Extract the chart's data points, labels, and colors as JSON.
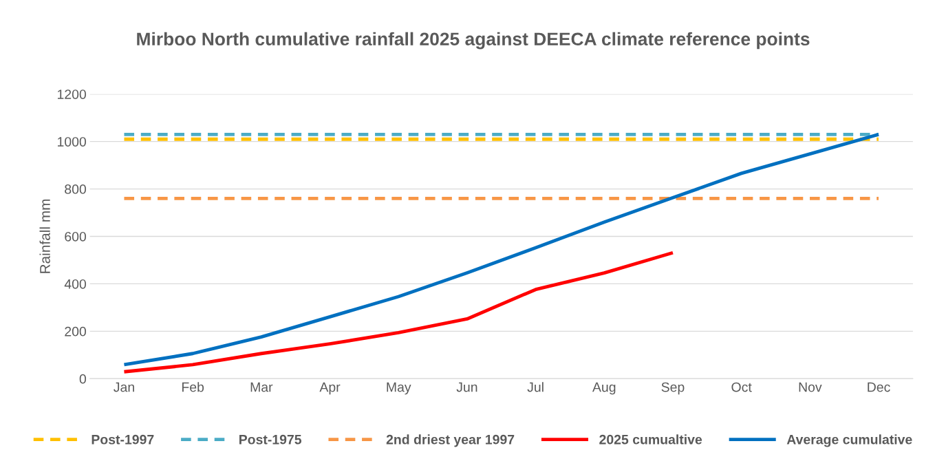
{
  "chart_data": {
    "type": "line",
    "title": "Mirboo North cumulative rainfall 2025 against DEECA climate reference points",
    "ylabel": "Rainfall mm",
    "categories": [
      "Jan",
      "Feb",
      "Mar",
      "Apr",
      "May",
      "Jun",
      "Jul",
      "Aug",
      "Sep",
      "Oct",
      "Nov",
      "Dec"
    ],
    "series": [
      {
        "name": "Post-1997",
        "color": "#ffc000",
        "line_style": "dashed",
        "values": [
          1010,
          1010,
          1010,
          1010,
          1010,
          1010,
          1010,
          1010,
          1010,
          1010,
          1010,
          1010
        ]
      },
      {
        "name": "Post-1975",
        "color": "#4bacc6",
        "line_style": "dashed",
        "values": [
          1030,
          1030,
          1030,
          1030,
          1030,
          1030,
          1030,
          1030,
          1030,
          1030,
          1030,
          1030
        ]
      },
      {
        "name": "2nd driest year 1997",
        "color": "#f79646",
        "line_style": "dashed",
        "values": [
          760,
          760,
          760,
          760,
          760,
          760,
          760,
          760,
          760,
          760,
          760,
          760
        ]
      },
      {
        "name": "2025 cumualtive",
        "color": "#ff0000",
        "line_style": "solid",
        "values": [
          29,
          59,
          106,
          147,
          194,
          252,
          376,
          446,
          531,
          null,
          null,
          null
        ]
      },
      {
        "name": "Average cumulative",
        "color": "#0070c0",
        "line_style": "solid",
        "values": [
          59,
          106,
          176,
          261,
          346,
          446,
          552,
          660,
          763,
          866,
          948,
          1030
        ]
      }
    ],
    "ylim": [
      0,
      1200
    ],
    "yticks": [
      0,
      200,
      400,
      600,
      800,
      1000,
      1200
    ],
    "grid": "y",
    "legend": "bottom",
    "marker": "none"
  }
}
